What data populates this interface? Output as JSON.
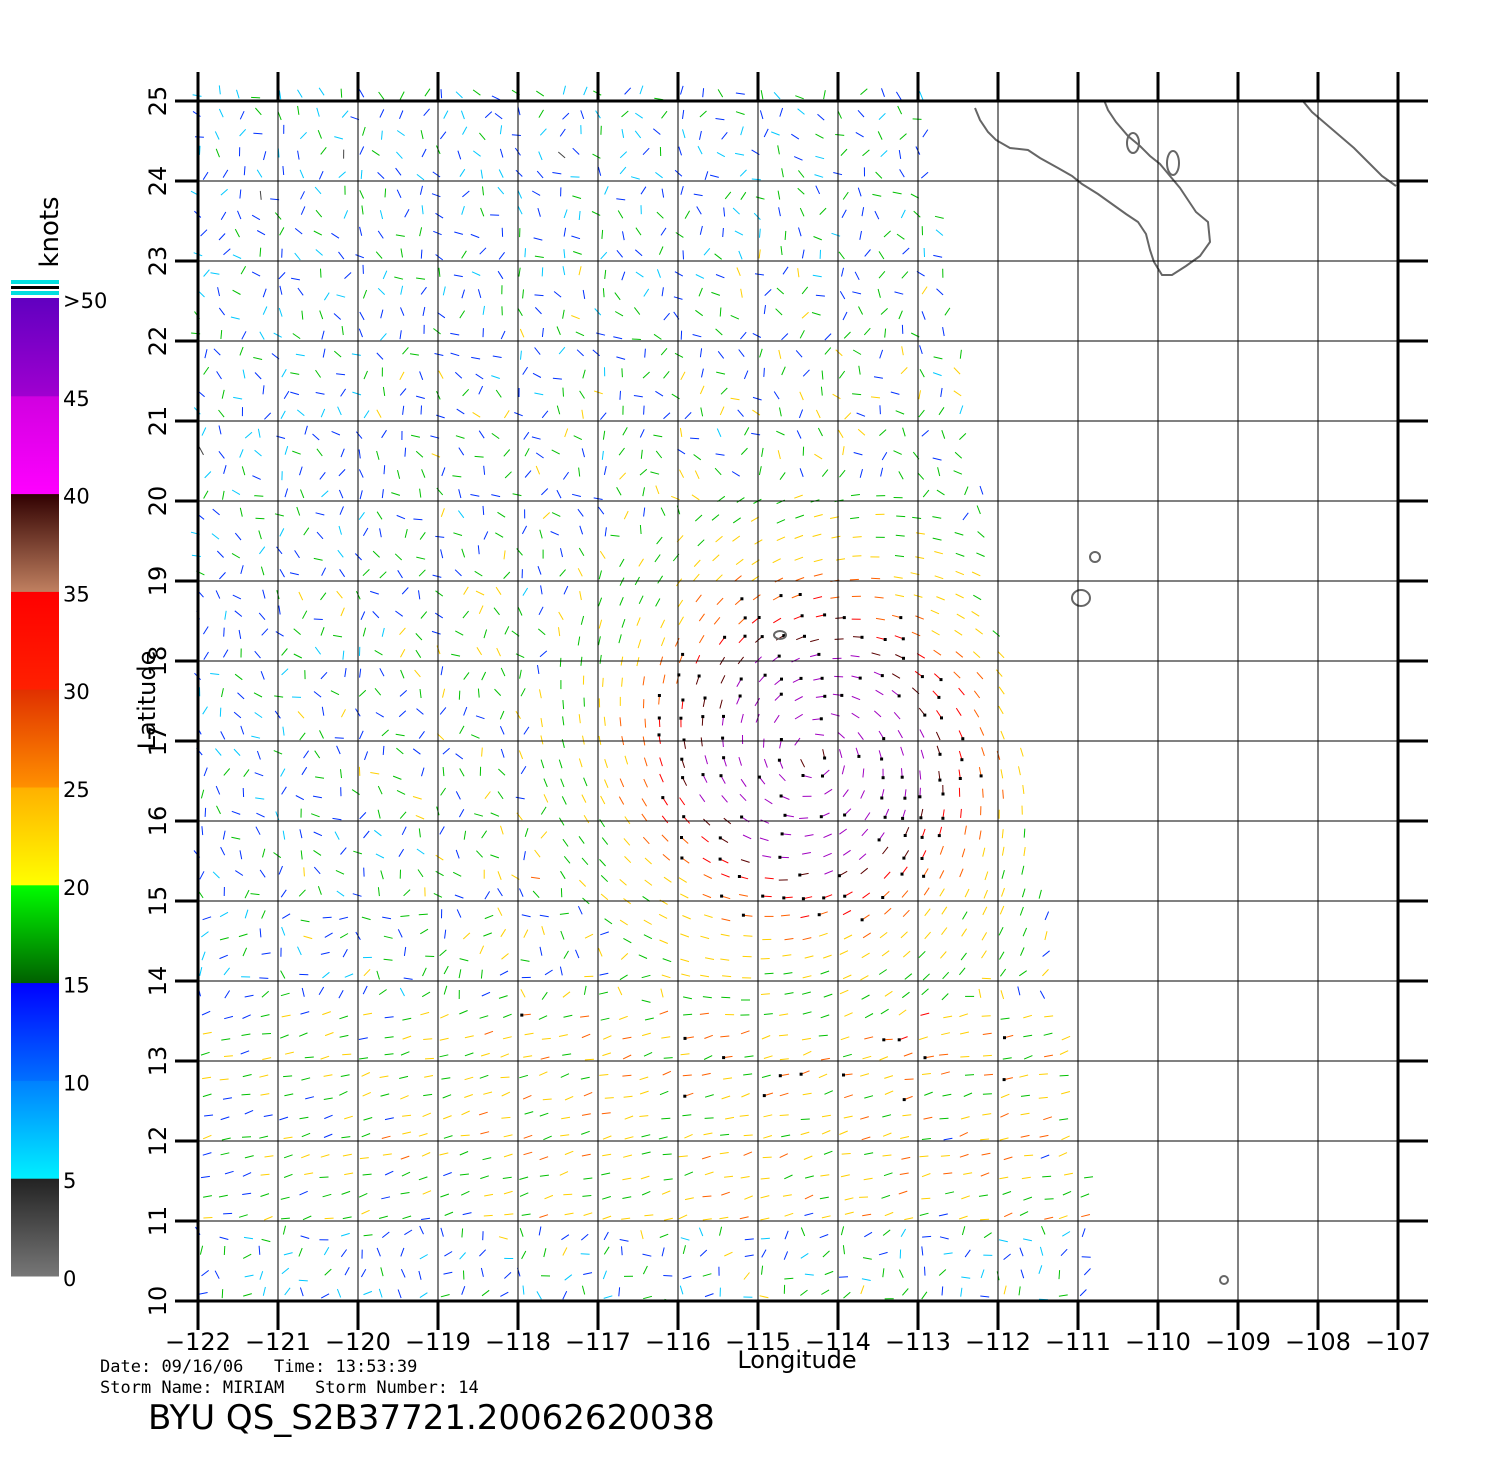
{
  "header": {
    "date_label": "Date:",
    "date": "09/16/06",
    "time_label": "Time:",
    "time": "13:53:39",
    "storm_name_label": "Storm Name:",
    "storm_name": "MIRIAM",
    "storm_number_label": "Storm Number:",
    "storm_number": "14",
    "product": "BYU QS_S2B37721.20062620038"
  },
  "map": {
    "lon_range": [
      -122,
      -107
    ],
    "lat_range": [
      10,
      25
    ],
    "xlabel": "Longitude",
    "ylabel": "Latitude",
    "lon_ticks": [
      "−122",
      "−121",
      "−120",
      "−119",
      "−118",
      "−117",
      "−116",
      "−115",
      "−114",
      "−113",
      "−112",
      "−111",
      "−110",
      "−109",
      "−108",
      "−107"
    ],
    "lat_ticks": [
      "10",
      "11",
      "12",
      "13",
      "14",
      "15",
      "16",
      "17",
      "18",
      "19",
      "20",
      "21",
      "22",
      "23",
      "24",
      "25"
    ],
    "grid": true,
    "storm_center": [
      -114.3,
      16.8
    ]
  },
  "colorbar": {
    "unit": "knots",
    "labels": [
      ">50",
      "45",
      "40",
      "35",
      "30",
      "25",
      "20",
      "15",
      "10",
      "5",
      "0"
    ],
    "bands": [
      {
        "from": 0,
        "to": 5,
        "colors": [
          "#777777",
          "#222222"
        ]
      },
      {
        "from": 5,
        "to": 10,
        "colors": [
          "#00f0ff",
          "#0080ff"
        ]
      },
      {
        "from": 10,
        "to": 15,
        "colors": [
          "#0070ff",
          "#0000ff"
        ]
      },
      {
        "from": 15,
        "to": 20,
        "colors": [
          "#006000",
          "#00ff00"
        ]
      },
      {
        "from": 20,
        "to": 25,
        "colors": [
          "#ffff00",
          "#ffb000"
        ]
      },
      {
        "from": 25,
        "to": 30,
        "colors": [
          "#ff9000",
          "#e03000"
        ]
      },
      {
        "from": 30,
        "to": 35,
        "colors": [
          "#ff2000",
          "#ff0000"
        ]
      },
      {
        "from": 35,
        "to": 40,
        "colors": [
          "#c08060",
          "#300000"
        ]
      },
      {
        "from": 40,
        "to": 45,
        "colors": [
          "#ff00ff",
          "#d000e0"
        ]
      },
      {
        "from": 45,
        "to": 50,
        "colors": [
          "#a000d0",
          "#6000c0"
        ]
      }
    ]
  }
}
